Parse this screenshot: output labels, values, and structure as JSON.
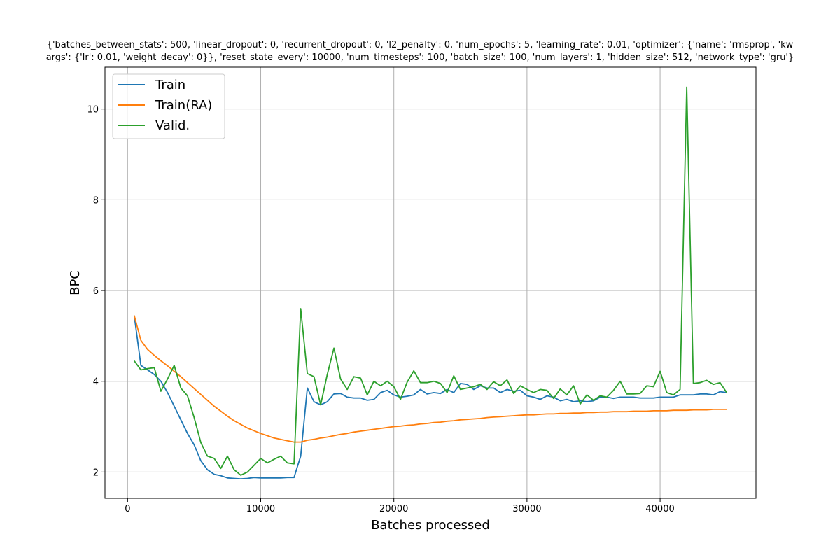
{
  "chart_data": {
    "type": "line",
    "title_lines": [
      "{'batches_between_stats': 500, 'linear_dropout': 0, 'recurrent_dropout': 0, 'l2_penalty': 0, 'num_epochs': 5, 'learning_rate': 0.01, 'optimizer': {'name': 'rmsprop', 'kw",
      "args': {'lr': 0.01, 'weight_decay': 0}}, 'reset_state_every': 10000, 'num_timesteps': 100, 'batch_size': 100, 'num_layers': 1, 'hidden_size': 512, 'network_type': 'gru'}"
    ],
    "xlabel": "Batches processed",
    "ylabel": "BPC",
    "xlim": [
      -1700,
      47200
    ],
    "ylim": [
      1.42,
      10.92
    ],
    "xticks": [
      0,
      10000,
      20000,
      30000,
      40000
    ],
    "yticks": [
      2,
      4,
      6,
      8,
      10
    ],
    "grid": true,
    "legend_position": "top-left",
    "x": [
      500,
      1000,
      1500,
      2000,
      2500,
      3000,
      3500,
      4000,
      4500,
      5000,
      5500,
      6000,
      6500,
      7000,
      7500,
      8000,
      8500,
      9000,
      9500,
      10000,
      10500,
      11000,
      11500,
      12000,
      12500,
      13000,
      13500,
      14000,
      14500,
      15000,
      15500,
      16000,
      16500,
      17000,
      17500,
      18000,
      18500,
      19000,
      19500,
      20000,
      20500,
      21000,
      21500,
      22000,
      22500,
      23000,
      23500,
      24000,
      24500,
      25000,
      25500,
      26000,
      26500,
      27000,
      27500,
      28000,
      28500,
      29000,
      29500,
      30000,
      30500,
      31000,
      31500,
      32000,
      32500,
      33000,
      33500,
      34000,
      34500,
      35000,
      35500,
      36000,
      36500,
      37000,
      37500,
      38000,
      38500,
      39000,
      39500,
      40000,
      40500,
      41000,
      41500,
      42000,
      42500,
      43000,
      43500,
      44000,
      44500,
      45000
    ],
    "series": [
      {
        "name": "Train",
        "color": "#1f77b4",
        "values": [
          5.45,
          4.35,
          4.25,
          4.15,
          4.0,
          3.75,
          3.45,
          3.15,
          2.85,
          2.6,
          2.25,
          2.05,
          1.95,
          1.92,
          1.87,
          1.86,
          1.85,
          1.86,
          1.88,
          1.87,
          1.87,
          1.87,
          1.87,
          1.88,
          1.88,
          2.35,
          3.85,
          3.55,
          3.48,
          3.55,
          3.72,
          3.73,
          3.65,
          3.63,
          3.63,
          3.58,
          3.6,
          3.75,
          3.8,
          3.7,
          3.65,
          3.67,
          3.7,
          3.82,
          3.72,
          3.75,
          3.73,
          3.82,
          3.75,
          3.95,
          3.93,
          3.82,
          3.9,
          3.85,
          3.85,
          3.75,
          3.82,
          3.78,
          3.8,
          3.68,
          3.65,
          3.6,
          3.68,
          3.65,
          3.57,
          3.6,
          3.55,
          3.57,
          3.55,
          3.57,
          3.65,
          3.65,
          3.62,
          3.65,
          3.65,
          3.65,
          3.63,
          3.63,
          3.63,
          3.65,
          3.65,
          3.65,
          3.7,
          3.7,
          3.7,
          3.72,
          3.72,
          3.7,
          3.77,
          3.75
        ]
      },
      {
        "name": "Train(RA)",
        "color": "#ff7f0e",
        "values": [
          5.45,
          4.9,
          4.7,
          4.57,
          4.45,
          4.34,
          4.22,
          4.1,
          3.97,
          3.84,
          3.71,
          3.58,
          3.45,
          3.34,
          3.23,
          3.13,
          3.05,
          2.97,
          2.91,
          2.85,
          2.8,
          2.75,
          2.72,
          2.69,
          2.66,
          2.66,
          2.7,
          2.72,
          2.75,
          2.77,
          2.8,
          2.83,
          2.85,
          2.88,
          2.9,
          2.92,
          2.94,
          2.96,
          2.98,
          3.0,
          3.01,
          3.03,
          3.04,
          3.06,
          3.07,
          3.09,
          3.1,
          3.12,
          3.13,
          3.15,
          3.16,
          3.17,
          3.18,
          3.2,
          3.21,
          3.22,
          3.23,
          3.24,
          3.25,
          3.26,
          3.26,
          3.27,
          3.28,
          3.28,
          3.29,
          3.29,
          3.3,
          3.3,
          3.31,
          3.31,
          3.32,
          3.32,
          3.33,
          3.33,
          3.33,
          3.34,
          3.34,
          3.34,
          3.35,
          3.35,
          3.35,
          3.36,
          3.36,
          3.36,
          3.37,
          3.37,
          3.37,
          3.38,
          3.38,
          3.38
        ]
      },
      {
        "name": "Valid.",
        "color": "#2ca02c",
        "values": [
          4.45,
          4.25,
          4.28,
          4.3,
          3.78,
          4.05,
          4.35,
          3.85,
          3.68,
          3.2,
          2.65,
          2.35,
          2.3,
          2.08,
          2.35,
          2.05,
          1.93,
          2.0,
          2.15,
          2.3,
          2.2,
          2.28,
          2.35,
          2.2,
          2.18,
          5.6,
          4.17,
          4.1,
          3.48,
          4.15,
          4.73,
          4.05,
          3.82,
          4.1,
          4.07,
          3.7,
          4.0,
          3.9,
          4.0,
          3.88,
          3.6,
          3.98,
          4.23,
          3.97,
          3.97,
          4.0,
          3.95,
          3.75,
          4.12,
          3.82,
          3.85,
          3.88,
          3.93,
          3.82,
          3.99,
          3.9,
          4.03,
          3.73,
          3.9,
          3.82,
          3.75,
          3.82,
          3.8,
          3.62,
          3.83,
          3.7,
          3.9,
          3.5,
          3.7,
          3.58,
          3.68,
          3.65,
          3.8,
          4.0,
          3.72,
          3.72,
          3.73,
          3.9,
          3.88,
          4.22,
          3.75,
          3.7,
          3.82,
          10.48,
          3.95,
          3.97,
          4.02,
          3.93,
          3.97,
          3.75
        ]
      }
    ]
  }
}
